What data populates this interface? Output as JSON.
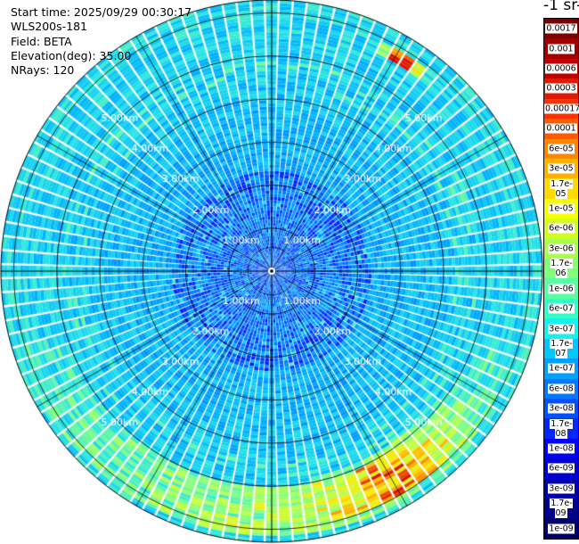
{
  "header": {
    "lines": [
      "Start time: 2025/09/29 00:30:17",
      "WLS200s-181",
      "Field: BETA",
      "Elevation(deg): 35.00",
      "NRays: 120"
    ]
  },
  "colorbar": {
    "title_fragment": "-1 sr-",
    "labels": [
      "0.0017",
      "0.001",
      "0.0006",
      "0.0003",
      "0.00017",
      "0.0001",
      "6e-05",
      "3e-05",
      "1.7e-05",
      "1e-05",
      "6e-06",
      "3e-06",
      "1.7e-06",
      "1e-06",
      "6e-07",
      "3e-07",
      "1.7e-07",
      "1e-07",
      "6e-08",
      "3e-08",
      "1.7e-08",
      "1e-08",
      "6e-09",
      "3e-09",
      "1.7e-09",
      "1e-09"
    ],
    "colors": [
      "#7f0000",
      "#a00000",
      "#c00000",
      "#e01a00",
      "#ff3200",
      "#ff5a00",
      "#ff8600",
      "#ffb000",
      "#ffda00",
      "#f6ff00",
      "#d0ff20",
      "#a8ff4c",
      "#80ff78",
      "#58ffa2",
      "#30ffcc",
      "#16f0ee",
      "#00c8ff",
      "#00a0ff",
      "#0078ff",
      "#0050ff",
      "#0028ff",
      "#0000f6",
      "#0000d0",
      "#0000ac",
      "#000088",
      "#00006a"
    ]
  },
  "chart_data": {
    "type": "heatmap",
    "projection": "polar PPI scan",
    "field": "BETA",
    "elevation_deg": 35.0,
    "n_rays": 120,
    "scale": "log",
    "range_ring_labels": [
      "1.00km",
      "2.00km",
      "3.00km",
      "4.00km",
      "5.00km"
    ],
    "range_ring_values_km": [
      1,
      2,
      3,
      4,
      5
    ],
    "ring_label_azimuths_deg": [
      45,
      135,
      225,
      315
    ],
    "max_range_km": 6.3,
    "spoke_azimuths_deg": [
      0,
      30,
      60,
      90,
      120,
      150,
      180,
      210,
      240,
      270,
      300,
      330
    ],
    "colorbar_range": [
      "1e-09",
      "0.0017"
    ],
    "features": [
      {
        "azimuth_deg": [
          25,
          40
        ],
        "range_km": [
          5.6,
          5.9
        ],
        "value": "0.0003"
      },
      {
        "azimuth_deg": [
          120,
          170
        ],
        "range_km": [
          4.9,
          5.9
        ],
        "value": "1e-05"
      },
      {
        "azimuth_deg": [
          170,
          250
        ],
        "range_km": [
          5.1,
          6.1
        ],
        "value": "6e-07"
      },
      {
        "azimuth_deg": [
          0,
          360
        ],
        "range_km": [
          0,
          2.2
        ],
        "value": "1e-08"
      },
      {
        "azimuth_deg": [
          0,
          360
        ],
        "range_km": [
          2.2,
          6.3
        ],
        "value": "3e-08"
      }
    ]
  }
}
